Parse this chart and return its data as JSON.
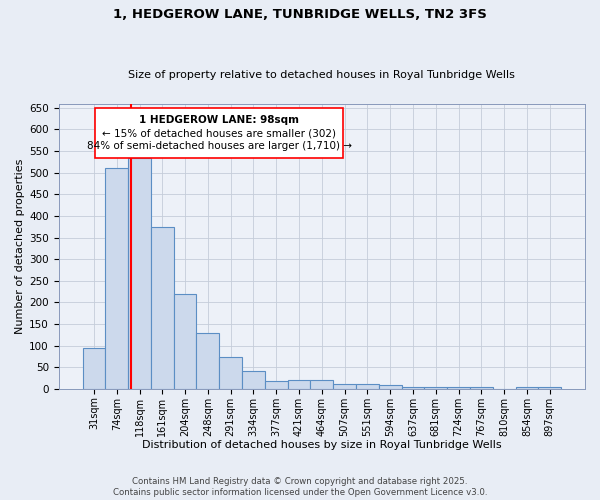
{
  "title": "1, HEDGEROW LANE, TUNBRIDGE WELLS, TN2 3FS",
  "subtitle": "Size of property relative to detached houses in Royal Tunbridge Wells",
  "xlabel": "Distribution of detached houses by size in Royal Tunbridge Wells",
  "ylabel": "Number of detached properties",
  "bar_labels": [
    "31sqm",
    "74sqm",
    "118sqm",
    "161sqm",
    "204sqm",
    "248sqm",
    "291sqm",
    "334sqm",
    "377sqm",
    "421sqm",
    "464sqm",
    "507sqm",
    "551sqm",
    "594sqm",
    "637sqm",
    "681sqm",
    "724sqm",
    "767sqm",
    "810sqm",
    "854sqm",
    "897sqm"
  ],
  "bar_values": [
    95,
    510,
    535,
    375,
    220,
    128,
    73,
    42,
    17,
    20,
    20,
    11,
    11,
    8,
    5,
    5,
    5,
    4,
    0,
    5,
    5
  ],
  "bar_color": "#ccd9ec",
  "bar_edge_color": "#5b8ec4",
  "red_line_x": 1.62,
  "ylim": [
    0,
    660
  ],
  "yticks": [
    0,
    50,
    100,
    150,
    200,
    250,
    300,
    350,
    400,
    450,
    500,
    550,
    600,
    650
  ],
  "annotation_title": "1 HEDGEROW LANE: 98sqm",
  "annotation_line1": "← 15% of detached houses are smaller (302)",
  "annotation_line2": "84% of semi-detached houses are larger (1,710) →",
  "footer_line1": "Contains HM Land Registry data © Crown copyright and database right 2025.",
  "footer_line2": "Contains public sector information licensed under the Open Government Licence v3.0.",
  "bg_color": "#e8edf5",
  "plot_bg_color": "#edf1f8",
  "grid_color": "#c5cdd9"
}
